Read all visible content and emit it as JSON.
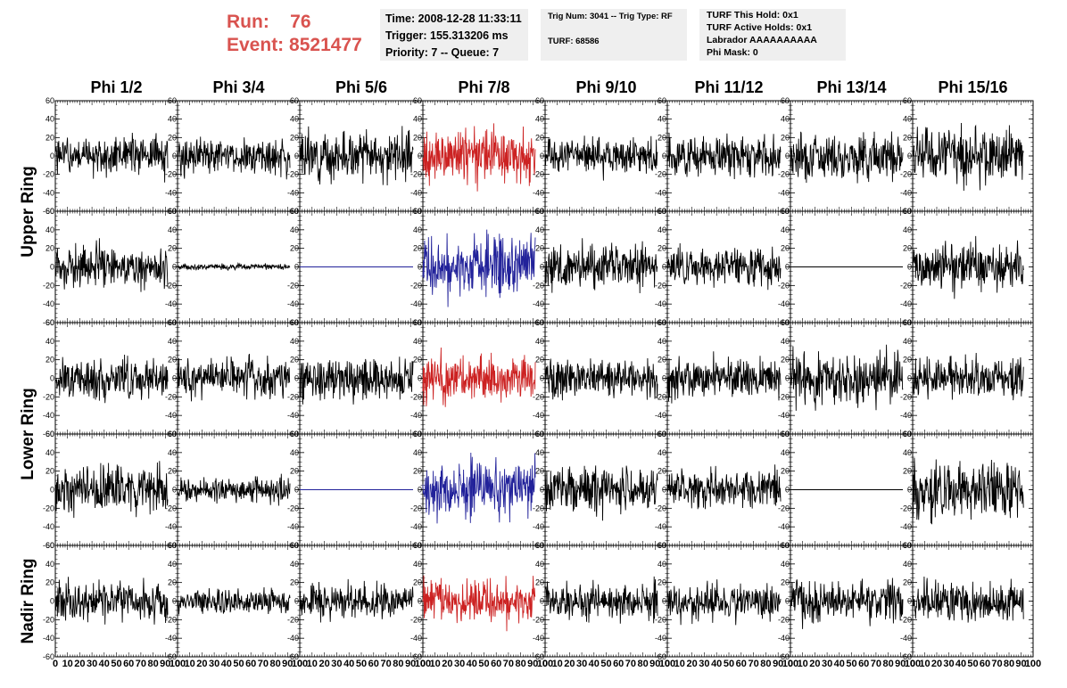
{
  "header": {
    "run_label": "Run:",
    "run_value": "76",
    "event_label": "Event:",
    "event_value": "8521477",
    "time": "Time: 2008-12-28 11:33:11",
    "trigger": "Trigger: 155.313206 ms",
    "priority": "Priority: 7 -- Queue: 7",
    "trig_num": "Trig Num: 3041 -- Trig Type: RF",
    "turf": "TURF: 68586",
    "turf_this_hold": "TURF This Hold: 0x1",
    "turf_active_holds": "TURF Active Holds: 0x1",
    "labrador": "Labrador AAAAAAAAAA",
    "phi_mask": "Phi Mask: 0"
  },
  "colors": {
    "run_text": "#d9534f",
    "info_bg": "#efefef",
    "trace_default": "#000000",
    "trace_highlight_red": "#cc2222",
    "trace_highlight_blue": "#22229a"
  },
  "chart_data": {
    "type": "line",
    "columns": [
      "Phi 1/2",
      "Phi 3/4",
      "Phi 5/6",
      "Phi 7/8",
      "Phi 9/10",
      "Phi 11/12",
      "Phi 13/14",
      "Phi 15/16"
    ],
    "ring_labels": [
      "Upper Ring",
      "Lower Ring",
      "Nadir Ring"
    ],
    "rows_per_ring": [
      2,
      2,
      1
    ],
    "xlim": [
      0,
      100
    ],
    "ylim": [
      -60,
      60
    ],
    "x_ticks": [
      "0",
      "10",
      "20",
      "30",
      "40",
      "50",
      "60",
      "70",
      "80",
      "90",
      "100"
    ],
    "y_ticks": [
      "60",
      "40",
      "20",
      "0",
      "-20",
      "-40",
      "-60"
    ],
    "x_sample_range": [
      0,
      92
    ],
    "panels": [
      {
        "row": 0,
        "col": 0,
        "amplitude": 13,
        "color": "black"
      },
      {
        "row": 0,
        "col": 1,
        "amplitude": 12,
        "color": "black"
      },
      {
        "row": 0,
        "col": 2,
        "amplitude": 15,
        "color": "black"
      },
      {
        "row": 0,
        "col": 3,
        "amplitude": 18,
        "color": "red"
      },
      {
        "row": 0,
        "col": 4,
        "amplitude": 12,
        "color": "black"
      },
      {
        "row": 0,
        "col": 5,
        "amplitude": 13,
        "color": "black"
      },
      {
        "row": 0,
        "col": 6,
        "amplitude": 15,
        "color": "black"
      },
      {
        "row": 0,
        "col": 7,
        "amplitude": 18,
        "color": "black"
      },
      {
        "row": 1,
        "col": 0,
        "amplitude": 15,
        "color": "black"
      },
      {
        "row": 1,
        "col": 1,
        "amplitude": 2,
        "color": "black"
      },
      {
        "row": 1,
        "col": 2,
        "amplitude": 0,
        "color": "blue"
      },
      {
        "row": 1,
        "col": 3,
        "amplitude": 20,
        "color": "blue"
      },
      {
        "row": 1,
        "col": 4,
        "amplitude": 15,
        "color": "black"
      },
      {
        "row": 1,
        "col": 5,
        "amplitude": 12,
        "color": "black"
      },
      {
        "row": 1,
        "col": 6,
        "amplitude": 0,
        "color": "black"
      },
      {
        "row": 1,
        "col": 7,
        "amplitude": 15,
        "color": "black"
      },
      {
        "row": 2,
        "col": 0,
        "amplitude": 13,
        "color": "black"
      },
      {
        "row": 2,
        "col": 1,
        "amplitude": 12,
        "color": "black"
      },
      {
        "row": 2,
        "col": 2,
        "amplitude": 15,
        "color": "black"
      },
      {
        "row": 2,
        "col": 3,
        "amplitude": 15,
        "color": "red"
      },
      {
        "row": 2,
        "col": 4,
        "amplitude": 12,
        "color": "black"
      },
      {
        "row": 2,
        "col": 5,
        "amplitude": 13,
        "color": "black"
      },
      {
        "row": 2,
        "col": 6,
        "amplitude": 18,
        "color": "black"
      },
      {
        "row": 2,
        "col": 7,
        "amplitude": 13,
        "color": "black"
      },
      {
        "row": 3,
        "col": 0,
        "amplitude": 15,
        "color": "black"
      },
      {
        "row": 3,
        "col": 1,
        "amplitude": 8,
        "color": "black"
      },
      {
        "row": 3,
        "col": 2,
        "amplitude": 0,
        "color": "blue"
      },
      {
        "row": 3,
        "col": 3,
        "amplitude": 18,
        "color": "blue"
      },
      {
        "row": 3,
        "col": 4,
        "amplitude": 15,
        "color": "black"
      },
      {
        "row": 3,
        "col": 5,
        "amplitude": 13,
        "color": "black"
      },
      {
        "row": 3,
        "col": 6,
        "amplitude": 0,
        "color": "black"
      },
      {
        "row": 3,
        "col": 7,
        "amplitude": 18,
        "color": "black"
      },
      {
        "row": 4,
        "col": 0,
        "amplitude": 13,
        "color": "black"
      },
      {
        "row": 4,
        "col": 1,
        "amplitude": 8,
        "color": "black"
      },
      {
        "row": 4,
        "col": 2,
        "amplitude": 11,
        "color": "black"
      },
      {
        "row": 4,
        "col": 3,
        "amplitude": 15,
        "color": "red"
      },
      {
        "row": 4,
        "col": 4,
        "amplitude": 12,
        "color": "black"
      },
      {
        "row": 4,
        "col": 5,
        "amplitude": 12,
        "color": "black"
      },
      {
        "row": 4,
        "col": 6,
        "amplitude": 13,
        "color": "black"
      },
      {
        "row": 4,
        "col": 7,
        "amplitude": 13,
        "color": "black"
      }
    ]
  }
}
